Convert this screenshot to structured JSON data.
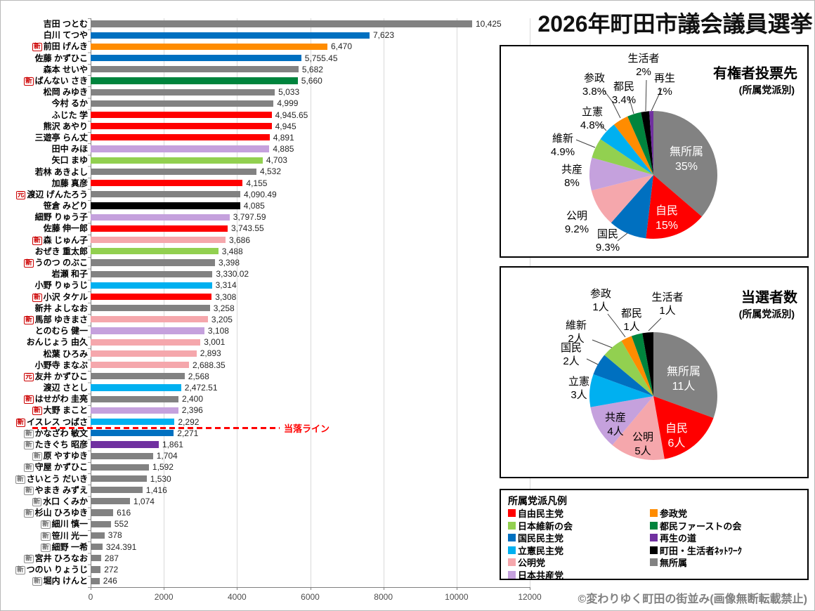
{
  "page_title": "2026年町田市議会議員選挙",
  "footer_credit": "©変わりゆく町田の街並み(画像無断転載禁止)",
  "parties": {
    "ldp": {
      "name": "自由民主党",
      "short": "自民",
      "color": "#FF0000"
    },
    "ishin": {
      "name": "日本維新の会",
      "short": "維新",
      "color": "#92D050"
    },
    "dpp": {
      "name": "国民民主党",
      "short": "国民",
      "color": "#0070C0"
    },
    "rikken": {
      "name": "立憲民主党",
      "short": "立憲",
      "color": "#00B0F0"
    },
    "komei": {
      "name": "公明党",
      "short": "公明",
      "color": "#F5A7AC"
    },
    "kyosan": {
      "name": "日本共産党",
      "short": "共産",
      "color": "#C5A1DD"
    },
    "sansei": {
      "name": "参政党",
      "short": "参政",
      "color": "#FF8C00"
    },
    "tomin": {
      "name": "都民ファーストの会",
      "short": "都民",
      "color": "#00843D"
    },
    "saisei": {
      "name": "再生の道",
      "short": "再生",
      "color": "#7030A0"
    },
    "seikatsu": {
      "name": "町田・生活者ﾈｯﾄﾜｰｸ",
      "short": "生活者",
      "color": "#000000"
    },
    "mushozoku": {
      "name": "無所属",
      "short": "無所属",
      "color": "#828282"
    }
  },
  "legend": {
    "title": "所属党派凡例",
    "columns": [
      [
        "ldp",
        "ishin",
        "dpp",
        "rikken",
        "komei",
        "kyosan"
      ],
      [
        "sansei",
        "tomin",
        "saisei",
        "seikatsu",
        "mushozoku"
      ]
    ]
  },
  "chart_data": [
    {
      "type": "bar",
      "title": "",
      "xlim": [
        0,
        12000
      ],
      "x_ticks": [
        "0",
        "2000",
        "4000",
        "6000",
        "8000",
        "10000",
        "12000"
      ],
      "grid": true,
      "cutoff_line": {
        "label": "当落ライン",
        "after_rank": 36
      },
      "bars": [
        {
          "name": "吉田 つとむ",
          "badge": null,
          "party": "mushozoku",
          "value": 10425,
          "value_label": "10,425"
        },
        {
          "name": "白川 てつや",
          "badge": null,
          "party": "dpp",
          "value": 7623,
          "value_label": "7,623"
        },
        {
          "name": "前田 げんき",
          "badge": "新",
          "party": "sansei",
          "value": 6470,
          "value_label": "6,470"
        },
        {
          "name": "佐藤 かずひこ",
          "badge": null,
          "party": "dpp",
          "value": 5755.45,
          "value_label": "5,755.45"
        },
        {
          "name": "森本 せいや",
          "badge": null,
          "party": "mushozoku",
          "value": 5682,
          "value_label": "5,682"
        },
        {
          "name": "ばんない さき",
          "badge": "新",
          "party": "tomin",
          "value": 5660,
          "value_label": "5,660"
        },
        {
          "name": "松岡 みゆき",
          "badge": null,
          "party": "mushozoku",
          "value": 5033,
          "value_label": "5,033"
        },
        {
          "name": "今村 るか",
          "badge": null,
          "party": "mushozoku",
          "value": 4999,
          "value_label": "4,999"
        },
        {
          "name": "ふじた 学",
          "badge": null,
          "party": "ldp",
          "value": 4945.65,
          "value_label": "4,945.65"
        },
        {
          "name": "熊沢 あやり",
          "badge": null,
          "party": "ldp",
          "value": 4945,
          "value_label": "4,945"
        },
        {
          "name": "三遊亭 らん丈",
          "badge": null,
          "party": "ldp",
          "value": 4891,
          "value_label": "4,891"
        },
        {
          "name": "田中 みほ",
          "badge": null,
          "party": "kyosan",
          "value": 4885,
          "value_label": "4,885"
        },
        {
          "name": "矢口 まゆ",
          "badge": null,
          "party": "ishin",
          "value": 4703,
          "value_label": "4,703"
        },
        {
          "name": "若林 あきよし",
          "badge": null,
          "party": "mushozoku",
          "value": 4532,
          "value_label": "4,532"
        },
        {
          "name": "加藤 真彦",
          "badge": null,
          "party": "ldp",
          "value": 4155,
          "value_label": "4,155"
        },
        {
          "name": "渡辺 げんたろう",
          "badge": "元",
          "party": "mushozoku",
          "value": 4090.49,
          "value_label": "4,090.49"
        },
        {
          "name": "笹倉 みどり",
          "badge": null,
          "party": "seikatsu",
          "value": 4085,
          "value_label": "4,085"
        },
        {
          "name": "細野 りゅう子",
          "badge": null,
          "party": "kyosan",
          "value": 3797.59,
          "value_label": "3,797.59"
        },
        {
          "name": "佐藤 伸一郎",
          "badge": null,
          "party": "ldp",
          "value": 3743.55,
          "value_label": "3,743.55"
        },
        {
          "name": "森 じゅん子",
          "badge": "新",
          "party": "komei",
          "value": 3686,
          "value_label": "3,686"
        },
        {
          "name": "おぜき 重太郎",
          "badge": null,
          "party": "ishin",
          "value": 3488,
          "value_label": "3,488"
        },
        {
          "name": "うのつ のぶこ",
          "badge": "新",
          "party": "mushozoku",
          "value": 3398,
          "value_label": "3,398"
        },
        {
          "name": "岩瀬 和子",
          "badge": null,
          "party": "mushozoku",
          "value": 3330.02,
          "value_label": "3,330.02"
        },
        {
          "name": "小野 りゅうじ",
          "badge": null,
          "party": "rikken",
          "value": 3314,
          "value_label": "3,314"
        },
        {
          "name": "小沢 タケル",
          "badge": "新",
          "party": "ldp",
          "value": 3308,
          "value_label": "3,308"
        },
        {
          "name": "新井 よしなお",
          "badge": null,
          "party": "mushozoku",
          "value": 3258,
          "value_label": "3,258"
        },
        {
          "name": "馬部 ゆきまさ",
          "badge": "新",
          "party": "komei",
          "value": 3205,
          "value_label": "3,205"
        },
        {
          "name": "とのむら 健一",
          "badge": null,
          "party": "kyosan",
          "value": 3108,
          "value_label": "3,108"
        },
        {
          "name": "おんじょう 由久",
          "badge": null,
          "party": "komei",
          "value": 3001,
          "value_label": "3,001"
        },
        {
          "name": "松葉 ひろみ",
          "badge": null,
          "party": "komei",
          "value": 2893,
          "value_label": "2,893"
        },
        {
          "name": "小野寺 まなぶ",
          "badge": null,
          "party": "komei",
          "value": 2688.35,
          "value_label": "2,688.35"
        },
        {
          "name": "友井 かずひこ",
          "badge": "元",
          "party": "mushozoku",
          "value": 2568,
          "value_label": "2,568"
        },
        {
          "name": "渡辺 さとし",
          "badge": null,
          "party": "rikken",
          "value": 2472.51,
          "value_label": "2,472.51"
        },
        {
          "name": "はせがわ 圭亮",
          "badge": "新",
          "party": "mushozoku",
          "value": 2400,
          "value_label": "2,400"
        },
        {
          "name": "大野 まこと",
          "badge": "新",
          "party": "kyosan",
          "value": 2396,
          "value_label": "2,396"
        },
        {
          "name": "イスレス つばさ",
          "badge": "新",
          "party": "rikken",
          "value": 2292,
          "value_label": "2,292"
        },
        {
          "name": "かなざわ 敏文",
          "badge": "新",
          "party": "dpp",
          "value": 2271,
          "value_label": "2,271"
        },
        {
          "name": "たきぐち 昭彦",
          "badge": "新",
          "party": "saisei",
          "value": 1861,
          "value_label": "1,861"
        },
        {
          "name": "原 やすゆき",
          "badge": "新",
          "party": "mushozoku",
          "value": 1704,
          "value_label": "1,704"
        },
        {
          "name": "守屋 かずひこ",
          "badge": "新",
          "party": "mushozoku",
          "value": 1592,
          "value_label": "1,592"
        },
        {
          "name": "さいとう だいき",
          "badge": "新",
          "party": "mushozoku",
          "value": 1530,
          "value_label": "1,530"
        },
        {
          "name": "やまき みずえ",
          "badge": "新",
          "party": "mushozoku",
          "value": 1416,
          "value_label": "1,416"
        },
        {
          "name": "水口 くみか",
          "badge": "新",
          "party": "mushozoku",
          "value": 1074,
          "value_label": "1,074"
        },
        {
          "name": "杉山 ひろゆき",
          "badge": "新",
          "party": "mushozoku",
          "value": 616,
          "value_label": "616"
        },
        {
          "name": "細川 慎一",
          "badge": "新",
          "party": "mushozoku",
          "value": 552,
          "value_label": "552"
        },
        {
          "name": "笹川 光一",
          "badge": "新",
          "party": "mushozoku",
          "value": 378,
          "value_label": "378"
        },
        {
          "name": "細野 一希",
          "badge": "新",
          "party": "mushozoku",
          "value": 324.391,
          "value_label": "324.391"
        },
        {
          "name": "宮井 ひろなお",
          "badge": "新",
          "party": "mushozoku",
          "value": 287,
          "value_label": "287"
        },
        {
          "name": "つのい りょうじ",
          "badge": "新",
          "party": "mushozoku",
          "value": 272,
          "value_label": "272"
        },
        {
          "name": "堀内 けんと",
          "badge": "新",
          "party": "mushozoku",
          "value": 246,
          "value_label": "246"
        }
      ]
    },
    {
      "type": "pie",
      "title": "有権者投票先",
      "subtitle": "(所属党派別)",
      "unit": "%",
      "slices": [
        {
          "party": "mushozoku",
          "label": "無所属",
          "value": 35,
          "value_label": "35%"
        },
        {
          "party": "ldp",
          "label": "自民",
          "value": 15,
          "value_label": "15%"
        },
        {
          "party": "dpp",
          "label": "国民",
          "value": 9.3,
          "value_label": "9.3%"
        },
        {
          "party": "komei",
          "label": "公明",
          "value": 9.2,
          "value_label": "9.2%"
        },
        {
          "party": "kyosan",
          "label": "共産",
          "value": 8,
          "value_label": "8%"
        },
        {
          "party": "ishin",
          "label": "維新",
          "value": 4.9,
          "value_label": "4.9%"
        },
        {
          "party": "rikken",
          "label": "立憲",
          "value": 4.8,
          "value_label": "4.8%"
        },
        {
          "party": "sansei",
          "label": "参政",
          "value": 3.8,
          "value_label": "3.8%"
        },
        {
          "party": "tomin",
          "label": "都民",
          "value": 3.4,
          "value_label": "3.4%"
        },
        {
          "party": "seikatsu",
          "label": "生活者",
          "value": 2,
          "value_label": "2%"
        },
        {
          "party": "saisei",
          "label": "再生",
          "value": 1,
          "value_label": "1%"
        }
      ]
    },
    {
      "type": "pie",
      "title": "当選者数",
      "subtitle": "(所属党派別)",
      "unit": "人",
      "slices": [
        {
          "party": "mushozoku",
          "label": "無所属",
          "value": 11,
          "value_label": "11人"
        },
        {
          "party": "ldp",
          "label": "自民",
          "value": 6,
          "value_label": "6人"
        },
        {
          "party": "komei",
          "label": "公明",
          "value": 5,
          "value_label": "5人"
        },
        {
          "party": "kyosan",
          "label": "共産",
          "value": 4,
          "value_label": "4人"
        },
        {
          "party": "rikken",
          "label": "立憲",
          "value": 3,
          "value_label": "3人"
        },
        {
          "party": "dpp",
          "label": "国民",
          "value": 2,
          "value_label": "2人"
        },
        {
          "party": "ishin",
          "label": "維新",
          "value": 2,
          "value_label": "2人"
        },
        {
          "party": "sansei",
          "label": "参政",
          "value": 1,
          "value_label": "1人"
        },
        {
          "party": "tomin",
          "label": "都民",
          "value": 1,
          "value_label": "1人"
        },
        {
          "party": "seikatsu",
          "label": "生活者",
          "value": 1,
          "value_label": "1人"
        }
      ]
    }
  ]
}
